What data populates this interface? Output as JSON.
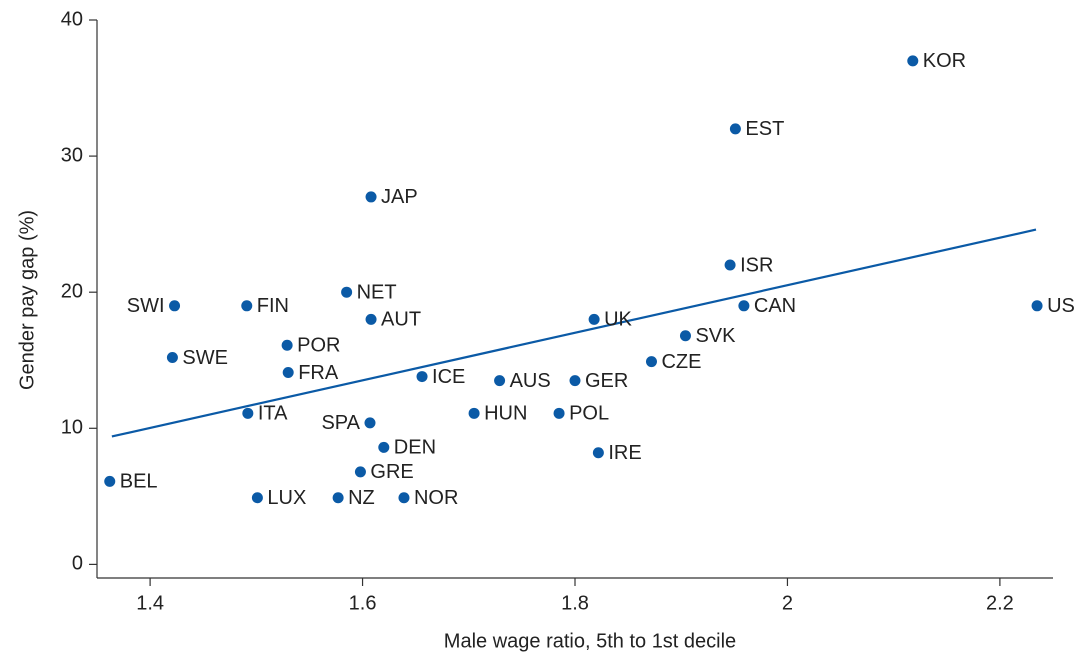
{
  "chart_data": {
    "type": "scatter",
    "x_label": "Male wage ratio, 5th to 1st decile",
    "y_label": "Gender pay gap (%)",
    "color": "#0b5aa6",
    "xlim": [
      1.35,
      2.25
    ],
    "ylim": [
      -1,
      40
    ],
    "xticks": [
      1.4,
      1.6,
      1.8,
      2,
      2.2
    ],
    "yticks": [
      0,
      10,
      20,
      30,
      40
    ],
    "labels": [
      "KOR",
      "EST",
      "JAP",
      "ISR",
      "NET",
      "SWI",
      "FIN",
      "UK",
      "AUT",
      "CAN",
      "US",
      "SVK",
      "POR",
      "SWE",
      "CZE",
      "FRA",
      "ICE",
      "AUS",
      "GER",
      "ITA",
      "HUN",
      "POL",
      "SPA",
      "DEN",
      "IRE",
      "GRE",
      "BEL",
      "LUX",
      "NZ",
      "NOR"
    ],
    "x": [
      2.118,
      1.951,
      1.608,
      1.946,
      1.585,
      1.423,
      1.491,
      1.818,
      1.608,
      1.959,
      2.235,
      1.904,
      1.529,
      1.421,
      1.872,
      1.53,
      1.656,
      1.729,
      1.8,
      1.492,
      1.705,
      1.785,
      1.607,
      1.62,
      1.822,
      1.598,
      1.362,
      1.501,
      1.577,
      1.639
    ],
    "y": [
      37,
      32,
      27,
      22,
      20,
      19,
      19,
      18,
      18,
      19,
      19,
      16.8,
      16.1,
      15.2,
      14.9,
      14.1,
      13.8,
      13.5,
      13.5,
      11.1,
      11.1,
      11.1,
      10.4,
      8.6,
      8.2,
      6.8,
      6.1,
      4.9,
      4.9,
      4.9
    ],
    "trend": {
      "x": [
        1.364,
        2.234
      ],
      "y": [
        9.4,
        24.6
      ]
    }
  }
}
